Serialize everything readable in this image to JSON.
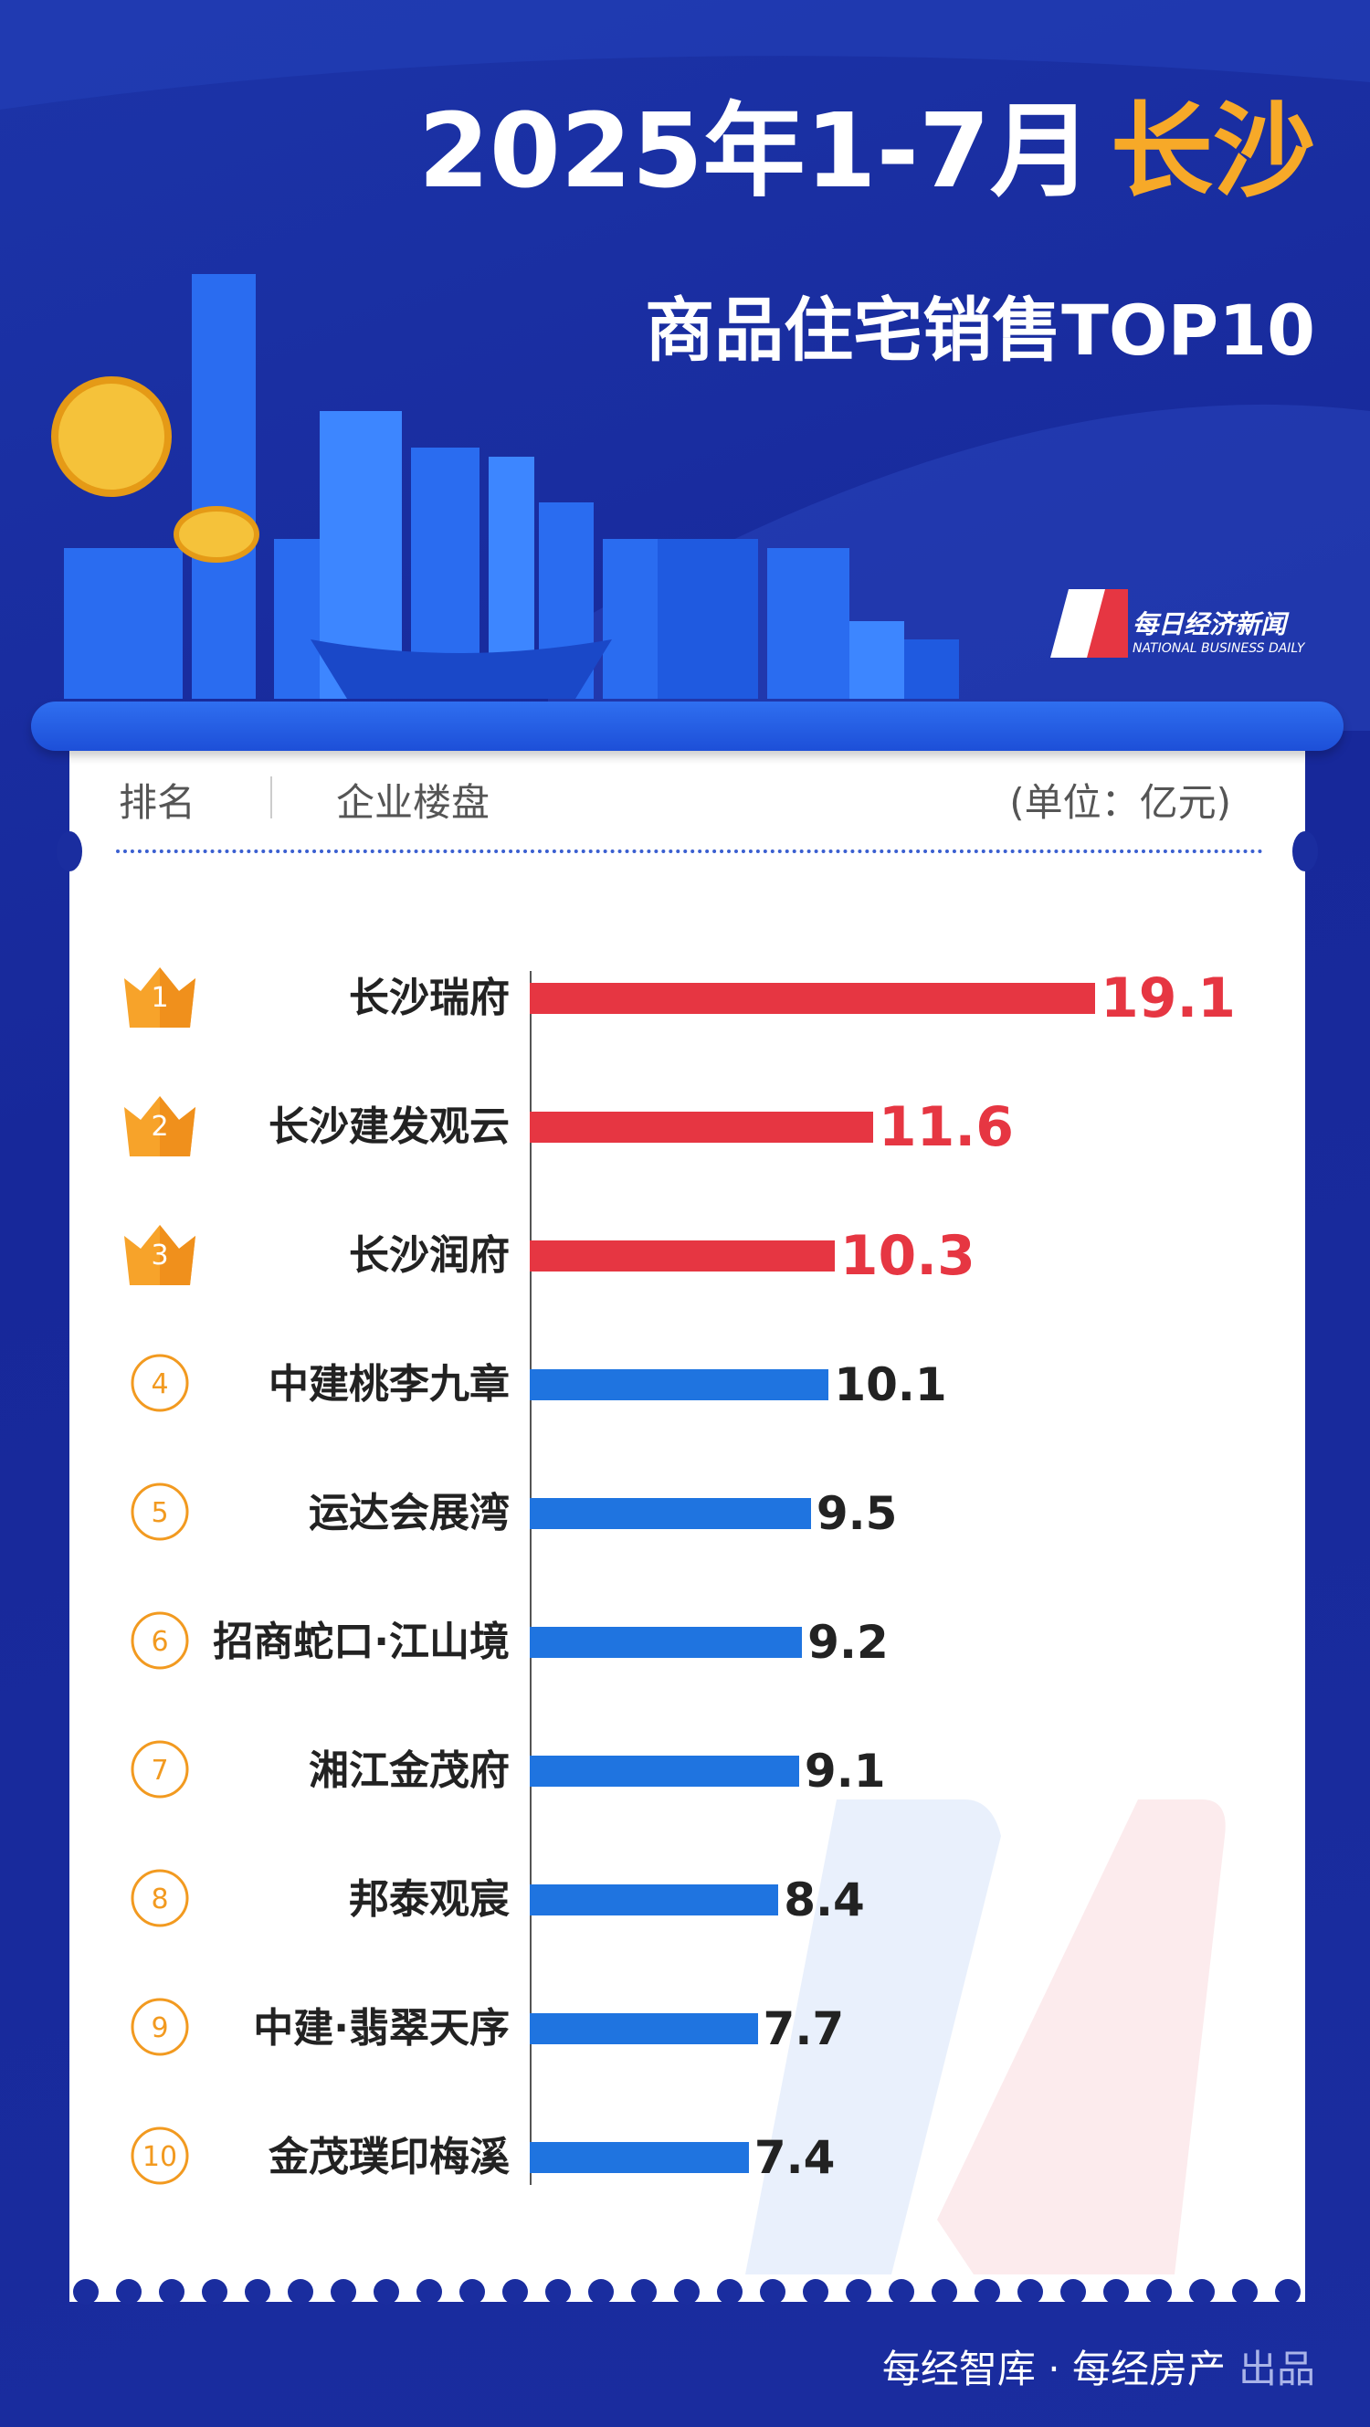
{
  "header": {
    "title": "2025年1-7月",
    "city": "长沙",
    "subtitle": "商品住宅销售TOP10",
    "logo_cn": "每日经济新闻",
    "logo_en": "NATIONAL BUSINESS DAILY"
  },
  "table_header": {
    "rank": "排名",
    "project": "企业楼盘",
    "unit": "(单位：亿元)"
  },
  "chart_data": {
    "type": "bar",
    "orientation": "horizontal",
    "ranks": [
      1,
      2,
      3,
      4,
      5,
      6,
      7,
      8,
      9,
      10
    ],
    "categories": [
      "长沙瑞府",
      "长沙建发观云",
      "长沙润府",
      "中建桃李九章",
      "运达会展湾",
      "招商蛇口·江山境",
      "湘江金茂府",
      "邦泰观宸",
      "中建·翡翠天序",
      "金茂璞印梅溪"
    ],
    "values": [
      19.1,
      11.6,
      10.3,
      10.1,
      9.5,
      9.2,
      9.1,
      8.4,
      7.7,
      7.4
    ],
    "bar_colors": [
      "#e63642",
      "#e63642",
      "#e63642",
      "#1f74e0",
      "#1f74e0",
      "#1f74e0",
      "#1f74e0",
      "#1f74e0",
      "#1f74e0",
      "#1f74e0"
    ],
    "label_colors": [
      "#e63642",
      "#e63642",
      "#e63642",
      "#222222",
      "#222222",
      "#222222",
      "#222222",
      "#222222",
      "#222222",
      "#222222"
    ]
  },
  "footer": {
    "source": "每经智库 · 每经房产",
    "suffix": "出品"
  }
}
